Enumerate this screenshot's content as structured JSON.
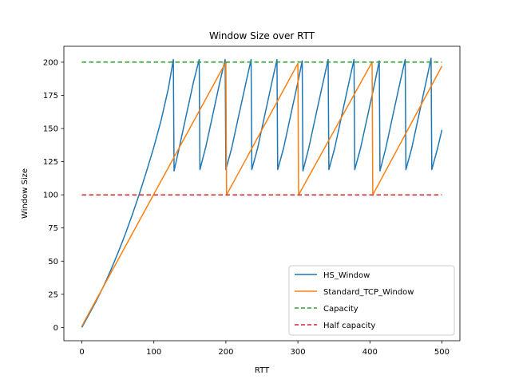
{
  "chart_data": {
    "type": "line",
    "title": "Window Size over RTT",
    "xlabel": "RTT",
    "ylabel": "Window Size",
    "xlim": [
      -25,
      525
    ],
    "ylim": [
      -10,
      212
    ],
    "xticks": [
      0,
      100,
      200,
      300,
      400,
      500
    ],
    "yticks": [
      0,
      25,
      50,
      75,
      100,
      125,
      150,
      175,
      200
    ],
    "grid": false,
    "legend_position": "lower-right",
    "series": [
      {
        "name": "HS_Window",
        "color": "#1f77b4",
        "style": "solid",
        "x": [
          0,
          10,
          20,
          30,
          40,
          50,
          60,
          70,
          80,
          90,
          100,
          110,
          120,
          127,
          128,
          135,
          145,
          155,
          163,
          164,
          172,
          182,
          192,
          199,
          200,
          208,
          218,
          228,
          235,
          236,
          244,
          254,
          264,
          271,
          272,
          280,
          290,
          300,
          306,
          307,
          315,
          325,
          335,
          342,
          343,
          351,
          361,
          371,
          378,
          379,
          387,
          397,
          407,
          413,
          414,
          422,
          432,
          442,
          449,
          450,
          458,
          468,
          478,
          485,
          486,
          494,
          500
        ],
        "y": [
          0,
          10,
          20,
          31,
          43,
          56,
          70,
          85,
          101,
          118,
          136,
          156,
          180,
          202,
          118,
          135,
          160,
          185,
          202,
          119,
          136,
          161,
          186,
          202,
          119,
          135,
          160,
          185,
          202,
          119,
          135,
          160,
          185,
          202,
          119,
          135,
          160,
          185,
          201,
          118,
          135,
          160,
          185,
          202,
          119,
          135,
          160,
          185,
          202,
          119,
          135,
          160,
          185,
          201,
          118,
          135,
          160,
          185,
          202,
          119,
          135,
          160,
          185,
          203,
          119,
          135,
          149
        ]
      },
      {
        "name": "Standard_TCP_Window",
        "color": "#ff7f0e",
        "style": "solid",
        "x": [
          0,
          200,
          201,
          300,
          301,
          403,
          404,
          500
        ],
        "y": [
          1,
          200,
          100,
          199,
          100,
          200,
          100,
          197
        ]
      },
      {
        "name": "Capacity",
        "color": "#2ca02c",
        "style": "dashed",
        "x": [
          0,
          500
        ],
        "y": [
          200,
          200
        ]
      },
      {
        "name": "Half capacity",
        "color": "#d62728",
        "style": "dashed",
        "x": [
          0,
          500
        ],
        "y": [
          100,
          100
        ]
      }
    ]
  }
}
